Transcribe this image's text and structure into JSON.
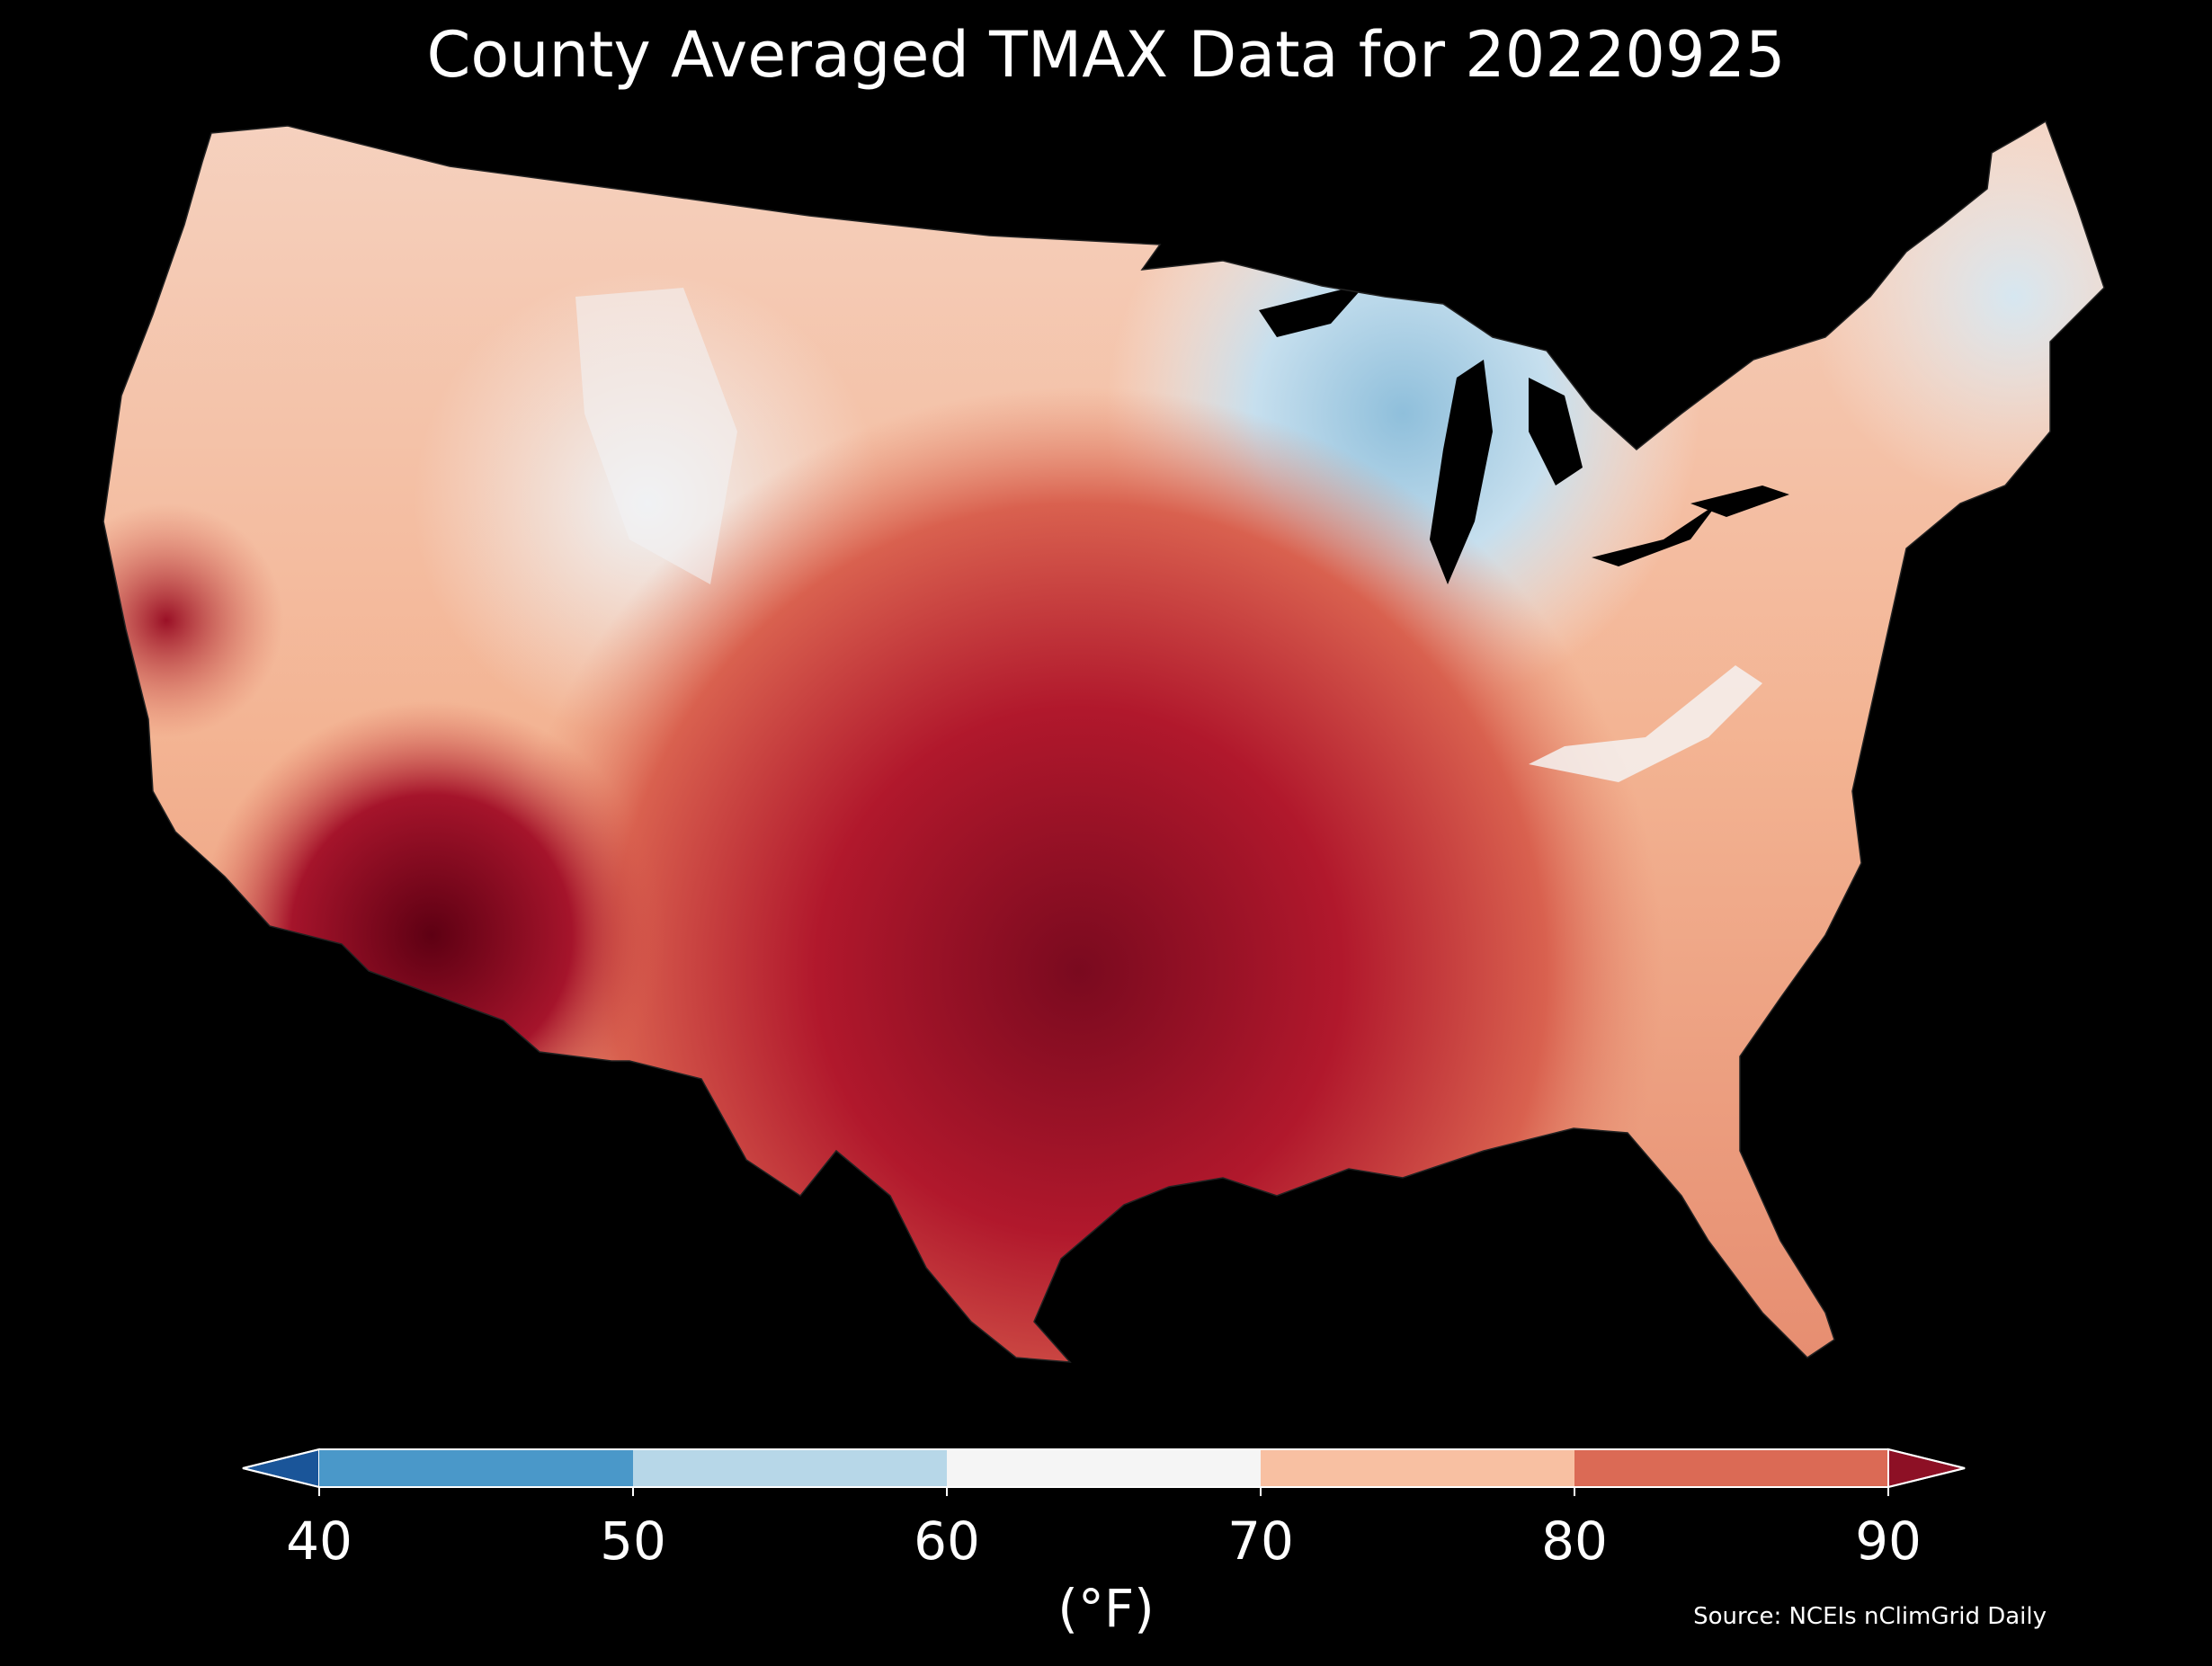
{
  "title": "County Averaged TMAX Data for 20220925",
  "colorbar": {
    "ticks": [
      "40",
      "50",
      "60",
      "70",
      "80",
      "90"
    ],
    "unit_label": "(°F)",
    "bins": [
      {
        "range": [
          40,
          50
        ],
        "color": "#4a98c9"
      },
      {
        "range": [
          50,
          60
        ],
        "color": "#b7d7e8"
      },
      {
        "range": [
          60,
          70
        ],
        "color": "#f5f5f5"
      },
      {
        "range": [
          70,
          80
        ],
        "color": "#f8c0a2"
      },
      {
        "range": [
          80,
          90
        ],
        "color": "#db6a55"
      }
    ],
    "under_color": "#1a5599",
    "over_color": "#8d1025",
    "extend": "both"
  },
  "source": "Source: NCEIs nClimGrid Daily",
  "map": {
    "region": "Contiguous United States",
    "variable": "TMAX",
    "unit": "°F",
    "colors": {
      "coolest": "#3e8fc2",
      "cool": "#aed1e6",
      "neutral": "#f4f2f1",
      "warm": "#f6bd9f",
      "hot": "#d9614f",
      "hottest": "#6b0017"
    }
  }
}
